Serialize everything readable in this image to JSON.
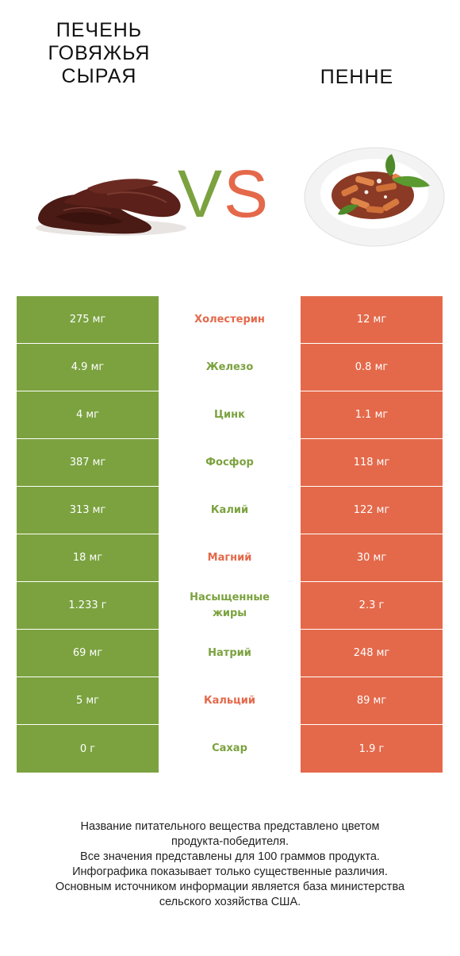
{
  "left": {
    "title_lines": [
      "ПЕЧЕНЬ",
      "ГОВЯЖЬЯ",
      "СЫРАЯ"
    ],
    "image": "raw-beef-liver-photo",
    "color": "#7ba23f"
  },
  "right": {
    "title_lines": [
      "ПЕННЕ"
    ],
    "image": "penne-plate-photo",
    "color": "#e4694a"
  },
  "vs": {
    "v": "V",
    "s": "S"
  },
  "rows": [
    {
      "left": "275 мг",
      "name": "Холестерин",
      "right": "12 мг",
      "winner": "right"
    },
    {
      "left": "4.9 мг",
      "name": "Железо",
      "right": "0.8 мг",
      "winner": "left"
    },
    {
      "left": "4 мг",
      "name": "Цинк",
      "right": "1.1 мг",
      "winner": "left"
    },
    {
      "left": "387 мг",
      "name": "Фосфор",
      "right": "118 мг",
      "winner": "left"
    },
    {
      "left": "313 мг",
      "name": "Калий",
      "right": "122 мг",
      "winner": "left"
    },
    {
      "left": "18 мг",
      "name": "Магний",
      "right": "30 мг",
      "winner": "right"
    },
    {
      "left": "1.233 г",
      "name_lines": [
        "Насыщенные",
        "жиры"
      ],
      "right": "2.3 г",
      "winner": "left"
    },
    {
      "left": "69 мг",
      "name": "Натрий",
      "right": "248 мг",
      "winner": "left"
    },
    {
      "left": "5 мг",
      "name": "Кальций",
      "right": "89 мг",
      "winner": "right"
    },
    {
      "left": "0 г",
      "name": "Сахар",
      "right": "1.9 г",
      "winner": "left"
    }
  ],
  "footer": [
    "Название питательного вещества представлено цветом",
    "продукта-победителя.",
    "Все значения представлены для 100 граммов продукта.",
    "Инфографика показывает только существенные различия.",
    "Основным источником информации является база министерства",
    "сельского хозяйства США."
  ]
}
